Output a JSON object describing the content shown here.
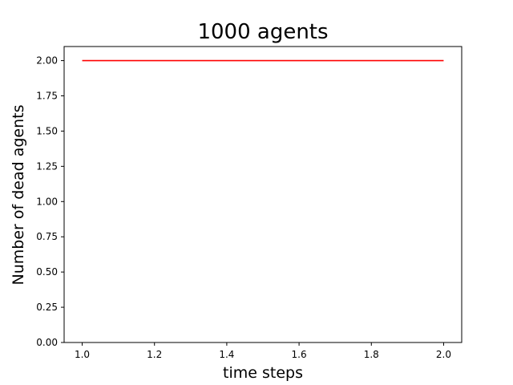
{
  "chart_data": {
    "type": "line",
    "title": "1000 agents",
    "xlabel": "time steps",
    "ylabel": "Number of dead agents",
    "xlim": [
      0.95,
      2.05
    ],
    "ylim": [
      0.0,
      2.1
    ],
    "xticks": [
      1.0,
      1.2,
      1.4,
      1.6,
      1.8,
      2.0
    ],
    "xtick_labels": [
      "1.0",
      "1.2",
      "1.4",
      "1.6",
      "1.8",
      "2.0"
    ],
    "yticks": [
      0.0,
      0.25,
      0.5,
      0.75,
      1.0,
      1.25,
      1.5,
      1.75,
      2.0
    ],
    "ytick_labels": [
      "0.00",
      "0.25",
      "0.50",
      "0.75",
      "1.00",
      "1.25",
      "1.50",
      "1.75",
      "2.00"
    ],
    "grid": false,
    "series": [
      {
        "color": "#ff0000",
        "x": [
          1.0,
          2.0
        ],
        "y": [
          2.0,
          2.0
        ]
      }
    ]
  }
}
